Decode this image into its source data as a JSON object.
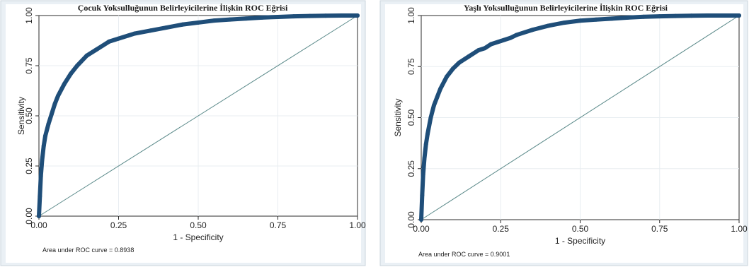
{
  "chart_data": [
    {
      "type": "line",
      "title": "Çocuk Yoksulluğunun Belirleyicilerine İlişkin ROC Eğrisi",
      "xlabel": "1 - Specificity",
      "ylabel": "Sensitivity",
      "xlim": [
        0,
        1
      ],
      "ylim": [
        0,
        1
      ],
      "xticks": [
        "0.00",
        "0.25",
        "0.50",
        "0.75",
        "1.00"
      ],
      "yticks": [
        "0.00",
        "0.25",
        "0.50",
        "0.75",
        "1.00"
      ],
      "grid": true,
      "note": "Area under ROC curve = 0.8938",
      "series": [
        {
          "x": [
            0,
            0.003,
            0.006,
            0.01,
            0.015,
            0.02,
            0.03,
            0.04,
            0.05,
            0.06,
            0.08,
            0.1,
            0.12,
            0.15,
            0.18,
            0.2,
            0.22,
            0.25,
            0.28,
            0.3,
            0.35,
            0.4,
            0.45,
            0.5,
            0.55,
            0.6,
            0.65,
            0.7,
            0.75,
            0.8,
            0.85,
            0.9,
            0.95,
            1.0
          ],
          "y": [
            0,
            0.1,
            0.2,
            0.28,
            0.35,
            0.4,
            0.46,
            0.51,
            0.56,
            0.6,
            0.66,
            0.71,
            0.75,
            0.8,
            0.83,
            0.85,
            0.87,
            0.885,
            0.9,
            0.91,
            0.925,
            0.94,
            0.955,
            0.965,
            0.975,
            0.98,
            0.985,
            0.99,
            0.993,
            0.996,
            0.998,
            0.999,
            1.0,
            1.0
          ]
        },
        {
          "x": [
            0,
            1
          ],
          "y": [
            0,
            1
          ]
        }
      ]
    },
    {
      "type": "line",
      "title": "Yaşlı Yoksulluğunun Belirleyicilerine İlişkin ROC Eğrisi",
      "xlabel": "1 - Specificity",
      "ylabel": "Sensitivity",
      "xlim": [
        0,
        1
      ],
      "ylim": [
        0,
        1
      ],
      "xticks": [
        "0.00",
        "0.25",
        "0.50",
        "0.75",
        "1.00"
      ],
      "yticks": [
        "0.00",
        "0.25",
        "0.50",
        "0.75",
        "1.00"
      ],
      "grid": true,
      "note": "Area under ROC curve = 0.9001",
      "series": [
        {
          "x": [
            0,
            0.003,
            0.006,
            0.01,
            0.015,
            0.02,
            0.03,
            0.04,
            0.05,
            0.06,
            0.08,
            0.1,
            0.12,
            0.15,
            0.18,
            0.2,
            0.22,
            0.25,
            0.28,
            0.3,
            0.35,
            0.4,
            0.45,
            0.5,
            0.55,
            0.6,
            0.65,
            0.7,
            0.75,
            0.8,
            0.85,
            0.9,
            0.95,
            1.0
          ],
          "y": [
            0,
            0.12,
            0.22,
            0.3,
            0.37,
            0.42,
            0.5,
            0.56,
            0.6,
            0.64,
            0.7,
            0.74,
            0.77,
            0.8,
            0.83,
            0.84,
            0.86,
            0.875,
            0.89,
            0.905,
            0.93,
            0.95,
            0.965,
            0.975,
            0.98,
            0.985,
            0.99,
            0.994,
            0.996,
            0.998,
            0.999,
            1.0,
            1.0,
            1.0
          ]
        },
        {
          "x": [
            0,
            1
          ],
          "y": [
            0,
            1
          ]
        }
      ]
    }
  ],
  "colors": {
    "roc_curve": "#1f4e79",
    "reference_line": "#5b8a8a",
    "grid": "#e8edf1",
    "frame": "#2b2b2b",
    "panel_border": "#c9d3dc",
    "outer_bg": "#ffffff"
  }
}
